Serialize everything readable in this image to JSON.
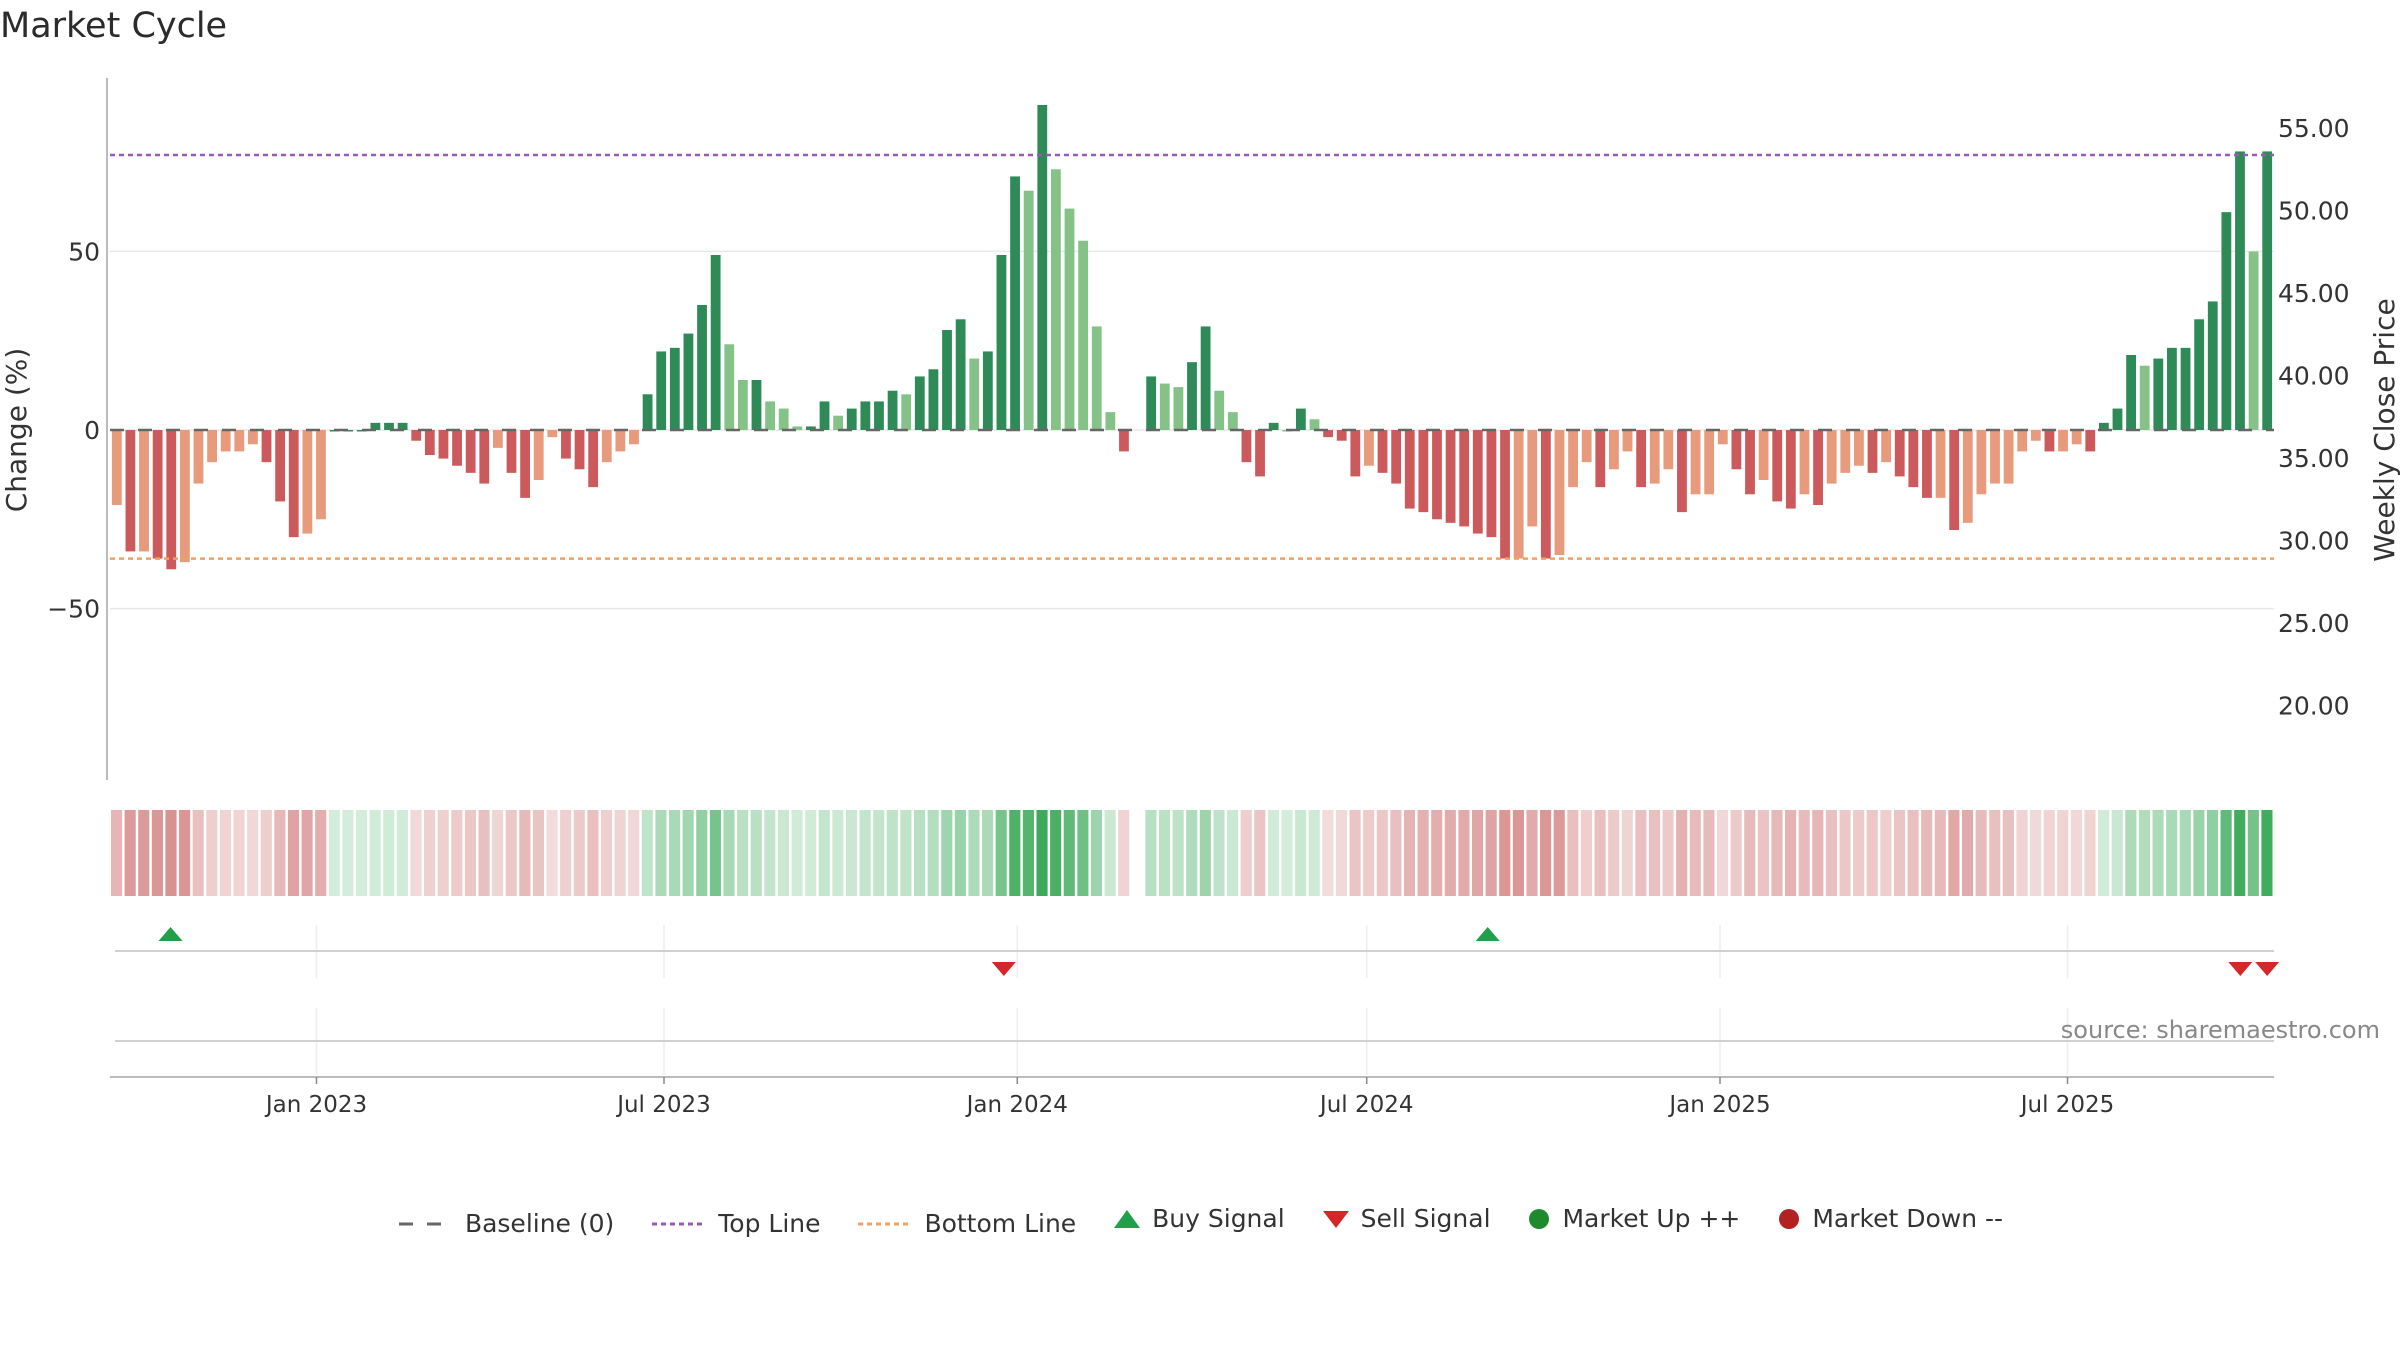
{
  "title": "Market Cycle",
  "source": "source: sharemaestro.com",
  "chart_data": {
    "type": "bar",
    "ylabel_left": "Change (%)",
    "ylabel_right": "Weekly Close Price",
    "ylim_left": [
      -98,
      98
    ],
    "ylim_right": [
      15.5,
      57.9
    ],
    "yticks_left": [
      {
        "value": 50,
        "label": "50"
      },
      {
        "value": 0,
        "label": "0"
      },
      {
        "value": -50,
        "label": "−50"
      }
    ],
    "yticks_right": [
      {
        "value": 55,
        "label": "55.00"
      },
      {
        "value": 50,
        "label": "50.00"
      },
      {
        "value": 45,
        "label": "45.00"
      },
      {
        "value": 40,
        "label": "40.00"
      },
      {
        "value": 35,
        "label": "35.00"
      },
      {
        "value": 30,
        "label": "30.00"
      },
      {
        "value": 25,
        "label": "25.00"
      },
      {
        "value": 20,
        "label": "20.00"
      }
    ],
    "x_start": "2022-09-19",
    "x_end": "2025-10-13",
    "x_ticks": [
      {
        "date": "2023-01-01",
        "label": "Jan 2023"
      },
      {
        "date": "2023-07-01",
        "label": "Jul 2023"
      },
      {
        "date": "2024-01-01",
        "label": "Jan 2024"
      },
      {
        "date": "2024-07-01",
        "label": "Jul 2024"
      },
      {
        "date": "2025-01-01",
        "label": "Jan 2025"
      },
      {
        "date": "2025-07-01",
        "label": "Jul 2025"
      }
    ],
    "top_line": 77,
    "bottom_line": -36,
    "series": [
      {
        "name": "Change (%)",
        "values": [
          -21,
          -34,
          -34,
          -36,
          -39,
          -37,
          -15,
          -9,
          -6,
          -6,
          -4,
          -9,
          -20,
          -30,
          -29,
          -25,
          0,
          0,
          0,
          2,
          2,
          2,
          -3,
          -7,
          -8,
          -10,
          -12,
          -15,
          -5,
          -12,
          -19,
          -14,
          -2,
          -8,
          -11,
          -16,
          -9,
          -6,
          -4,
          10,
          22,
          23,
          27,
          35,
          49,
          24,
          14,
          14,
          8,
          6,
          1,
          1,
          8,
          4,
          6,
          8,
          8,
          11,
          10,
          15,
          17,
          28,
          31,
          20,
          22,
          49,
          71,
          67,
          91,
          73,
          62,
          53,
          29,
          5,
          -6,
          null,
          15,
          13,
          12,
          19,
          29,
          11,
          5,
          -9,
          -13,
          2,
          0,
          6,
          3,
          -2,
          -3,
          -13,
          -10,
          -12,
          -15,
          -22,
          -23,
          -25,
          -26,
          -27,
          -29,
          -30,
          -36,
          -36,
          -27,
          -36,
          -35,
          -16,
          -9,
          -16,
          -11,
          -6,
          -16,
          -15,
          -11,
          -23,
          -18,
          -18,
          -4,
          -11,
          -18,
          -14,
          -20,
          -22,
          -18,
          -21,
          -15,
          -12,
          -10,
          -12,
          -9,
          -13,
          -16,
          -19,
          -19,
          -28,
          -26,
          -18,
          -15,
          -15,
          -6,
          -3,
          -6,
          -6,
          -4,
          -6,
          2,
          6,
          21,
          18,
          20,
          23,
          23,
          31,
          36,
          61,
          78,
          50,
          78
        ]
      }
    ],
    "regime_colors": {
      "up_strong": "#2e8b57",
      "up_weak": "#84c287",
      "down_strong": "#cc5a5d",
      "down_weak": "#e89a7c"
    },
    "buy_signals": [
      "2022-10-17",
      "2024-09-02"
    ],
    "sell_signals": [
      "2023-12-25",
      "2025-09-29",
      "2025-10-13"
    ]
  },
  "legend": [
    {
      "icon": "baseline-dash",
      "label": "Baseline (0)",
      "color": "#666666"
    },
    {
      "icon": "top-dotted-line",
      "label": "Top Line",
      "color": "#9b59b6"
    },
    {
      "icon": "bottom-dotted-line",
      "label": "Bottom Line",
      "color": "#f0a060"
    },
    {
      "icon": "triangle-up",
      "label": "Buy Signal",
      "color": "#22a049"
    },
    {
      "icon": "triangle-down",
      "label": "Sell Signal",
      "color": "#d62728"
    },
    {
      "icon": "circle",
      "label": "Market Up ++",
      "color": "#1e8a2e"
    },
    {
      "icon": "circle",
      "label": "Market Down --",
      "color": "#b22222"
    }
  ]
}
